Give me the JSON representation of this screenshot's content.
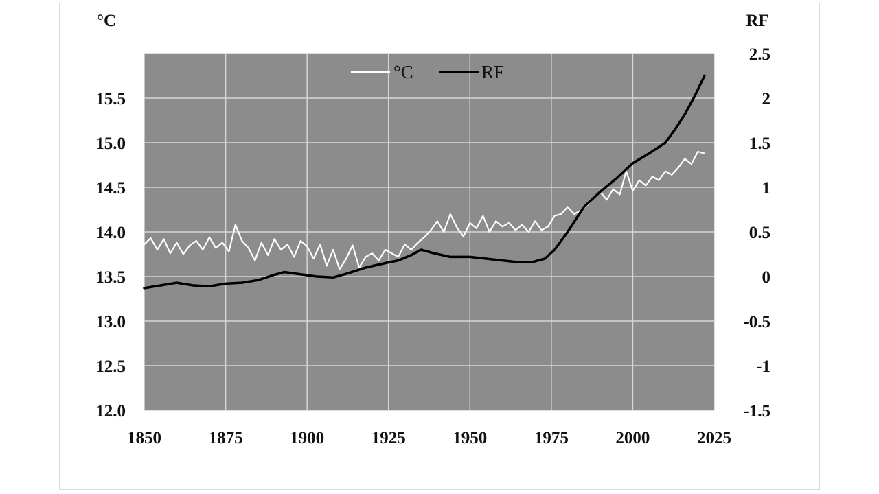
{
  "chart_data": {
    "type": "line",
    "title": "",
    "xlabel": "",
    "ylabel_left": "°C",
    "ylabel_right": "RF",
    "xlim": [
      1850,
      2025
    ],
    "ylim_left": [
      12.0,
      16.0
    ],
    "ylim_right": [
      -1.5,
      2.5
    ],
    "x_ticks": [
      "1850",
      "1875",
      "1900",
      "1925",
      "1950",
      "1975",
      "2000",
      "2025"
    ],
    "y_left_ticks": [
      "12.0",
      "12.5",
      "13.0",
      "13.5",
      "14.0",
      "14.5",
      "15.0",
      "15.5"
    ],
    "y_right_ticks": [
      "-1.5",
      "-1",
      "-0.5",
      "0",
      "0.5",
      "1",
      "1.5",
      "2",
      "2.5"
    ],
    "grid": true,
    "legend_position": "top-center",
    "plot_background": "#8c8c8c",
    "series": [
      {
        "name": "°C",
        "axis": "left",
        "color": "#ffffff",
        "x": [
          1850,
          1852,
          1854,
          1856,
          1858,
          1860,
          1862,
          1864,
          1866,
          1868,
          1870,
          1872,
          1874,
          1876,
          1878,
          1880,
          1882,
          1884,
          1886,
          1888,
          1890,
          1892,
          1894,
          1896,
          1898,
          1900,
          1902,
          1904,
          1906,
          1908,
          1910,
          1912,
          1914,
          1916,
          1918,
          1920,
          1922,
          1924,
          1926,
          1928,
          1930,
          1932,
          1934,
          1936,
          1938,
          1940,
          1942,
          1944,
          1946,
          1948,
          1950,
          1952,
          1954,
          1956,
          1958,
          1960,
          1962,
          1964,
          1966,
          1968,
          1970,
          1972,
          1974,
          1976,
          1978,
          1980,
          1982,
          1984,
          1986,
          1988,
          1990,
          1992,
          1994,
          1996,
          1998,
          2000,
          2002,
          2004,
          2006,
          2008,
          2010,
          2012,
          2014,
          2016,
          2018,
          2020,
          2022
        ],
        "values": [
          13.86,
          13.93,
          13.8,
          13.92,
          13.76,
          13.88,
          13.75,
          13.85,
          13.9,
          13.8,
          13.94,
          13.82,
          13.88,
          13.78,
          14.08,
          13.9,
          13.82,
          13.68,
          13.88,
          13.74,
          13.92,
          13.8,
          13.86,
          13.72,
          13.9,
          13.84,
          13.7,
          13.86,
          13.62,
          13.8,
          13.58,
          13.7,
          13.85,
          13.6,
          13.72,
          13.76,
          13.68,
          13.8,
          13.76,
          13.72,
          13.86,
          13.8,
          13.88,
          13.94,
          14.02,
          14.12,
          14.0,
          14.2,
          14.05,
          13.95,
          14.1,
          14.04,
          14.18,
          14.0,
          14.12,
          14.06,
          14.1,
          14.02,
          14.08,
          14.0,
          14.12,
          14.02,
          14.06,
          14.18,
          14.2,
          14.28,
          14.2,
          14.24,
          14.3,
          14.38,
          14.45,
          14.36,
          14.48,
          14.42,
          14.68,
          14.46,
          14.58,
          14.52,
          14.62,
          14.58,
          14.68,
          14.64,
          14.72,
          14.82,
          14.76,
          14.9,
          14.88
        ]
      },
      {
        "name": "RF",
        "axis": "right",
        "color": "#000000",
        "x": [
          1850,
          1855,
          1860,
          1865,
          1870,
          1875,
          1880,
          1885,
          1890,
          1893,
          1897,
          1903,
          1908,
          1912,
          1918,
          1924,
          1928,
          1932,
          1935,
          1939,
          1944,
          1950,
          1955,
          1960,
          1965,
          1969,
          1973,
          1976,
          1980,
          1985,
          1990,
          1995,
          2000,
          2005,
          2010,
          2013,
          2016,
          2019,
          2022
        ],
        "values": [
          -0.13,
          -0.1,
          -0.07,
          -0.1,
          -0.11,
          -0.08,
          -0.07,
          -0.04,
          0.02,
          0.05,
          0.03,
          0.0,
          -0.01,
          0.03,
          0.1,
          0.15,
          0.18,
          0.24,
          0.3,
          0.26,
          0.22,
          0.22,
          0.2,
          0.18,
          0.16,
          0.16,
          0.2,
          0.3,
          0.5,
          0.78,
          0.95,
          1.1,
          1.27,
          1.38,
          1.5,
          1.65,
          1.82,
          2.02,
          2.25
        ]
      }
    ]
  }
}
